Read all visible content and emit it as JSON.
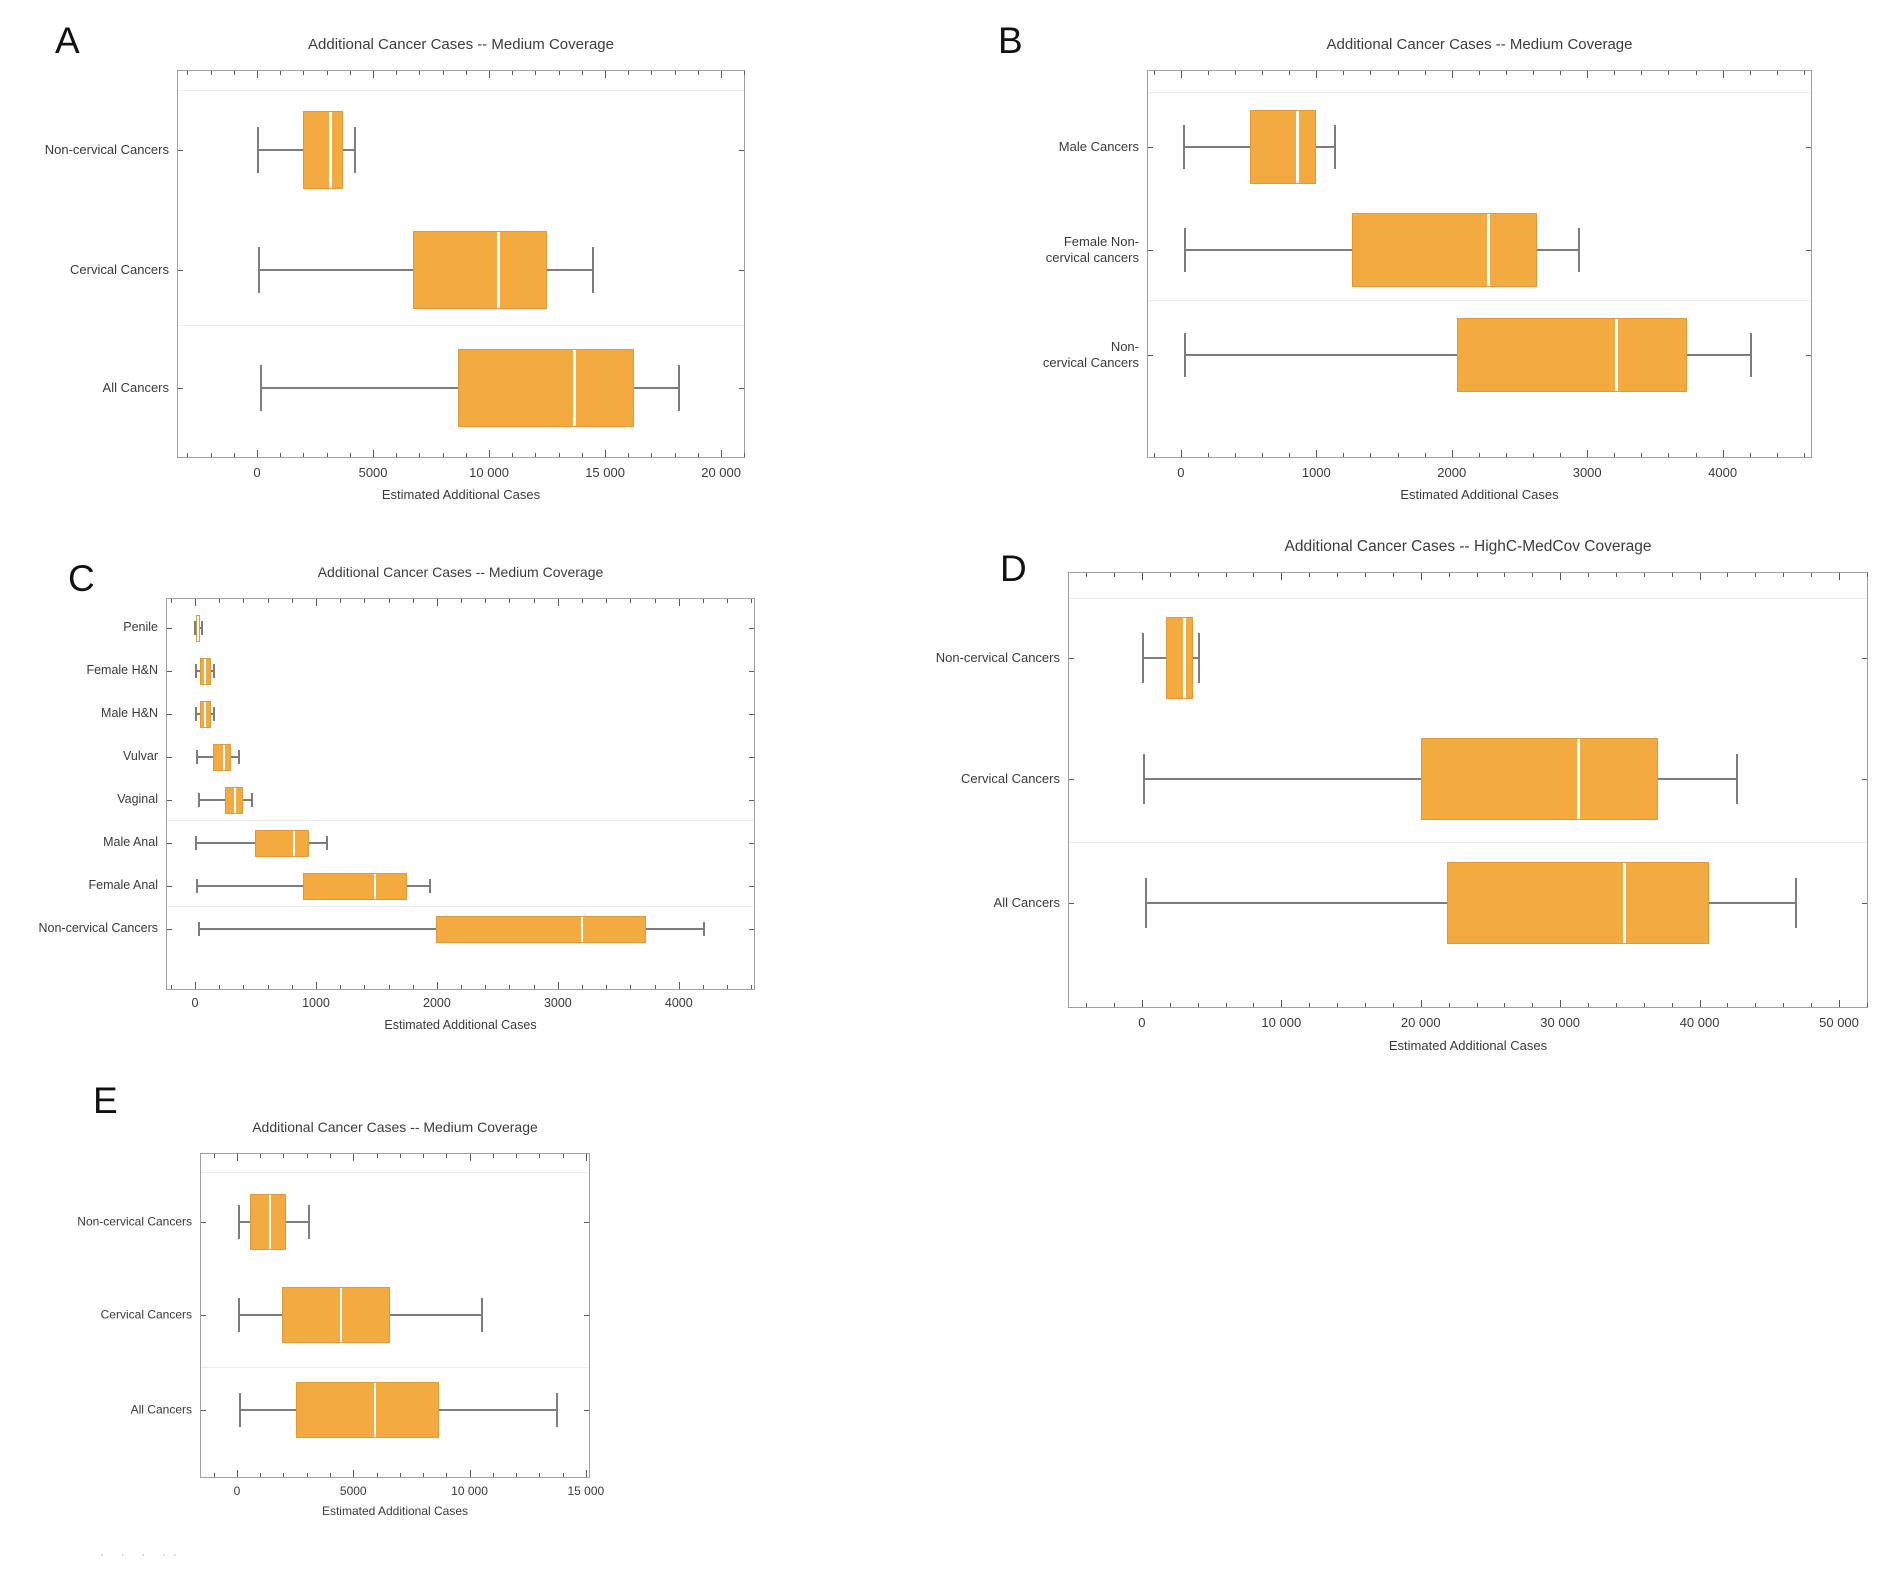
{
  "figure": {
    "background": "#ffffff",
    "box_fill": "#F3AA41",
    "box_edge": "#E29A38",
    "median_color": "#FFFFFF",
    "whisker_color": "#7D7D7D",
    "frame_color": "#A0A0A0",
    "tick_color": "#5A5A5A",
    "text_color": "#3A3A3A",
    "separator_color": "#ECECEC",
    "artifact_text": "· ·  · ··"
  },
  "chart_data": [
    {
      "id": "A",
      "type": "boxplot-horizontal",
      "panel_letter": "A",
      "title": "Additional Cancer Cases -- Medium Coverage",
      "xlabel": "Estimated Additional Cases",
      "xlim": [
        -3450,
        21030
      ],
      "grid": "row-separators",
      "major_ticks": [
        {
          "value": 0,
          "label": "0"
        },
        {
          "value": 5000,
          "label": "5000"
        },
        {
          "value": 10000,
          "label": "10 000"
        },
        {
          "value": 15000,
          "label": "15 000"
        },
        {
          "value": 20000,
          "label": "20 000"
        }
      ],
      "minor_tick_step": 1000,
      "categories": [
        "Non-cervical Cancers",
        "Cervical Cancers",
        "All Cancers"
      ],
      "category_lines": [
        [
          "Non-cervical Cancers"
        ],
        [
          "Cervical Cancers"
        ],
        [
          "All Cancers"
        ]
      ],
      "series": [
        {
          "name": "Non-cervical Cancers",
          "min": 50,
          "q1": 2000,
          "median": 3150,
          "q3": 3700,
          "max": 4200
        },
        {
          "name": "Cervical Cancers",
          "min": 100,
          "q1": 6700,
          "median": 10400,
          "q3": 12500,
          "max": 14500
        },
        {
          "name": "All Cancers",
          "min": 150,
          "q1": 8650,
          "median": 13700,
          "q3": 16250,
          "max": 18200
        }
      ]
    },
    {
      "id": "B",
      "type": "boxplot-horizontal",
      "panel_letter": "B",
      "title": "Additional Cancer Cases -- Medium Coverage",
      "xlabel": "Estimated Additional Cases",
      "xlim": [
        -250,
        4660
      ],
      "grid": "row-separators",
      "major_ticks": [
        {
          "value": 0,
          "label": "0"
        },
        {
          "value": 1000,
          "label": "1000"
        },
        {
          "value": 2000,
          "label": "2000"
        },
        {
          "value": 3000,
          "label": "3000"
        },
        {
          "value": 4000,
          "label": "4000"
        }
      ],
      "minor_tick_step": 200,
      "categories": [
        "Male Cancers",
        "Female Non-cervical cancers",
        "Non-cervical Cancers"
      ],
      "category_lines": [
        [
          "Male Cancers"
        ],
        [
          "Female Non-",
          "cervical cancers"
        ],
        [
          "Non-",
          "cervical Cancers"
        ]
      ],
      "series": [
        {
          "name": "Male Cancers",
          "min": 20,
          "q1": 510,
          "median": 860,
          "q3": 1000,
          "max": 1140
        },
        {
          "name": "Female Non-cervical cancers",
          "min": 30,
          "q1": 1260,
          "median": 2270,
          "q3": 2630,
          "max": 2940
        },
        {
          "name": "Non-cervical Cancers",
          "min": 30,
          "q1": 2040,
          "median": 3220,
          "q3": 3740,
          "max": 4210
        }
      ]
    },
    {
      "id": "C",
      "type": "boxplot-horizontal",
      "panel_letter": "C",
      "title": "Additional Cancer Cases -- Medium Coverage",
      "xlabel": "Estimated Additional Cases",
      "xlim": [
        -240,
        4630
      ],
      "grid": "row-separators",
      "major_ticks": [
        {
          "value": 0,
          "label": "0"
        },
        {
          "value": 1000,
          "label": "1000"
        },
        {
          "value": 2000,
          "label": "2000"
        },
        {
          "value": 3000,
          "label": "3000"
        },
        {
          "value": 4000,
          "label": "4000"
        }
      ],
      "minor_tick_step": 200,
      "categories": [
        "Penile",
        "Female H&N",
        "Male H&N",
        "Vulvar",
        "Vaginal",
        "Male Anal",
        "Female Anal",
        "Non-cervical Cancers"
      ],
      "category_lines": [
        [
          "Penile"
        ],
        [
          "Female H&N"
        ],
        [
          "Male H&N"
        ],
        [
          "Vulvar"
        ],
        [
          "Vaginal"
        ],
        [
          "Male Anal"
        ],
        [
          "Female Anal"
        ],
        [
          "Non-cervical Cancers"
        ]
      ],
      "series": [
        {
          "name": "Penile",
          "min": 0,
          "q1": 10,
          "median": 25,
          "q3": 40,
          "max": 60
        },
        {
          "name": "Female H&N",
          "min": 10,
          "q1": 40,
          "median": 85,
          "q3": 130,
          "max": 155
        },
        {
          "name": "Male H&N",
          "min": 10,
          "q1": 40,
          "median": 85,
          "q3": 130,
          "max": 160
        },
        {
          "name": "Vulvar",
          "min": 20,
          "q1": 150,
          "median": 240,
          "q3": 300,
          "max": 360
        },
        {
          "name": "Vaginal",
          "min": 30,
          "q1": 250,
          "median": 330,
          "q3": 400,
          "max": 470
        },
        {
          "name": "Male Anal",
          "min": 10,
          "q1": 500,
          "median": 820,
          "q3": 940,
          "max": 1090
        },
        {
          "name": "Female Anal",
          "min": 20,
          "q1": 890,
          "median": 1490,
          "q3": 1750,
          "max": 1940
        },
        {
          "name": "Non-cervical Cancers",
          "min": 30,
          "q1": 1990,
          "median": 3200,
          "q3": 3730,
          "max": 4210
        }
      ]
    },
    {
      "id": "D",
      "type": "boxplot-horizontal",
      "panel_letter": "D",
      "title": "Additional Cancer Cases -- HighC-MedCov Coverage",
      "xlabel": "Estimated Additional Cases",
      "xlim": [
        -5300,
        52080
      ],
      "grid": "row-separators",
      "major_ticks": [
        {
          "value": 0,
          "label": "0"
        },
        {
          "value": 10000,
          "label": "10 000"
        },
        {
          "value": 20000,
          "label": "20 000"
        },
        {
          "value": 30000,
          "label": "30 000"
        },
        {
          "value": 40000,
          "label": "40 000"
        },
        {
          "value": 50000,
          "label": "50 000"
        }
      ],
      "minor_tick_step": 2000,
      "categories": [
        "Non-cervical Cancers",
        "Cervical Cancers",
        "All Cancers"
      ],
      "category_lines": [
        [
          "Non-cervical Cancers"
        ],
        [
          "Cervical Cancers"
        ],
        [
          "All Cancers"
        ]
      ],
      "series": [
        {
          "name": "Non-cervical Cancers",
          "min": 100,
          "q1": 1730,
          "median": 3070,
          "q3": 3660,
          "max": 4100
        },
        {
          "name": "Cervical Cancers",
          "min": 150,
          "q1": 20000,
          "median": 31300,
          "q3": 37000,
          "max": 42700
        },
        {
          "name": "All Cancers",
          "min": 300,
          "q1": 21900,
          "median": 34650,
          "q3": 40700,
          "max": 46900
        }
      ]
    },
    {
      "id": "E",
      "type": "boxplot-horizontal",
      "panel_letter": "E",
      "title": "Additional Cancer Cases -- Medium Coverage",
      "xlabel": "Estimated Additional Cases",
      "xlim": [
        -1590,
        15180
      ],
      "grid": "row-separators",
      "major_ticks": [
        {
          "value": 0,
          "label": "0"
        },
        {
          "value": 5000,
          "label": "5000"
        },
        {
          "value": 10000,
          "label": "10 000"
        },
        {
          "value": 15000,
          "label": "15 000"
        }
      ],
      "minor_tick_step": 1000,
      "categories": [
        "Non-cervical Cancers",
        "Cervical Cancers",
        "All Cancers"
      ],
      "category_lines": [
        [
          "Non-cervical Cancers"
        ],
        [
          "Cervical Cancers"
        ],
        [
          "All Cancers"
        ]
      ],
      "series": [
        {
          "name": "Non-cervical Cancers",
          "min": 100,
          "q1": 550,
          "median": 1440,
          "q3": 2100,
          "max": 3100
        },
        {
          "name": "Cervical Cancers",
          "min": 100,
          "q1": 1930,
          "median": 4480,
          "q3": 6560,
          "max": 10540
        },
        {
          "name": "All Cancers",
          "min": 150,
          "q1": 2550,
          "median": 5940,
          "q3": 8670,
          "max": 13760
        }
      ]
    }
  ]
}
